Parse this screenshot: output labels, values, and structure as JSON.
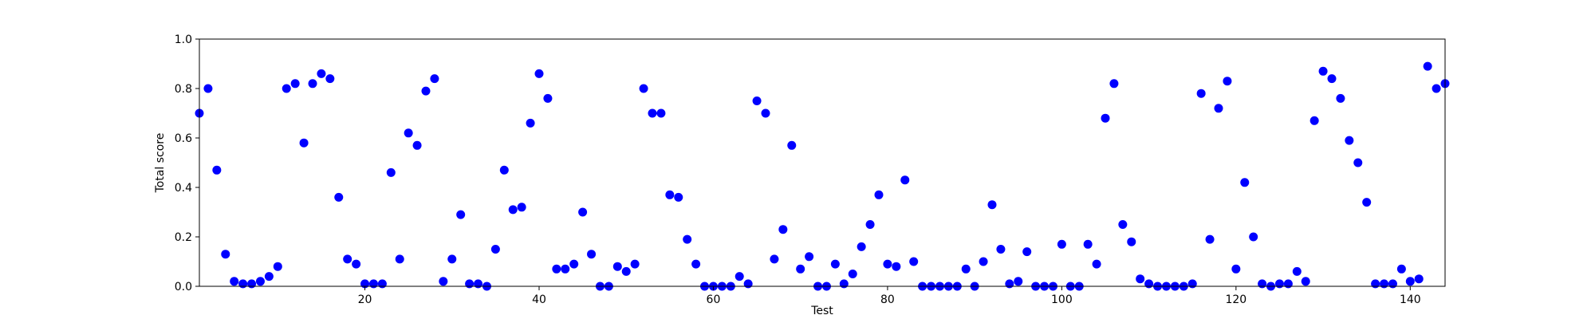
{
  "chart_data": {
    "type": "scatter",
    "title": "",
    "xlabel": "Test",
    "ylabel": "Total score",
    "xlim": [
      1,
      144
    ],
    "ylim": [
      0.0,
      1.0
    ],
    "xticks": [
      20,
      40,
      60,
      80,
      100,
      120,
      140
    ],
    "yticks": [
      0.0,
      0.2,
      0.4,
      0.6,
      0.8,
      1.0
    ],
    "xtick_labels": [
      "20",
      "40",
      "60",
      "80",
      "100",
      "120",
      "140"
    ],
    "ytick_labels": [
      "0.0",
      "0.2",
      "0.4",
      "0.6",
      "0.8",
      "1.0"
    ],
    "grid": false,
    "marker_color": "#0000ff",
    "x": [
      1,
      2,
      3,
      4,
      5,
      6,
      7,
      8,
      9,
      10,
      11,
      12,
      13,
      14,
      15,
      16,
      17,
      18,
      19,
      20,
      21,
      22,
      23,
      24,
      25,
      26,
      27,
      28,
      29,
      30,
      31,
      32,
      33,
      34,
      35,
      36,
      37,
      38,
      39,
      40,
      41,
      42,
      43,
      44,
      45,
      46,
      47,
      48,
      49,
      50,
      51,
      52,
      53,
      54,
      55,
      56,
      57,
      58,
      59,
      60,
      61,
      62,
      63,
      64,
      65,
      66,
      67,
      68,
      69,
      70,
      71,
      72,
      73,
      74,
      75,
      76,
      77,
      78,
      79,
      80,
      81,
      82,
      83,
      84,
      85,
      86,
      87,
      88,
      89,
      90,
      91,
      92,
      93,
      94,
      95,
      96,
      97,
      98,
      99,
      100,
      101,
      102,
      103,
      104,
      105,
      106,
      107,
      108,
      109,
      110,
      111,
      112,
      113,
      114,
      115,
      116,
      117,
      118,
      119,
      120,
      121,
      122,
      123,
      124,
      125,
      126,
      127,
      128,
      129,
      130,
      131,
      132,
      133,
      134,
      135,
      136,
      137,
      138,
      139,
      140,
      141,
      142,
      143,
      144
    ],
    "y": [
      0.7,
      0.8,
      0.47,
      0.13,
      0.02,
      0.01,
      0.01,
      0.02,
      0.04,
      0.08,
      0.8,
      0.82,
      0.58,
      0.82,
      0.86,
      0.84,
      0.36,
      0.11,
      0.09,
      0.01,
      0.01,
      0.01,
      0.46,
      0.11,
      0.62,
      0.57,
      0.79,
      0.84,
      0.02,
      0.11,
      0.29,
      0.01,
      0.01,
      0.0,
      0.15,
      0.47,
      0.31,
      0.32,
      0.66,
      0.86,
      0.76,
      0.07,
      0.07,
      0.09,
      0.3,
      0.13,
      0.0,
      0.0,
      0.08,
      0.06,
      0.09,
      0.8,
      0.7,
      0.7,
      0.37,
      0.36,
      0.19,
      0.09,
      0.0,
      0.0,
      0.0,
      0.0,
      0.04,
      0.01,
      0.75,
      0.7,
      0.11,
      0.23,
      0.57,
      0.07,
      0.12,
      0.0,
      0.0,
      0.09,
      0.01,
      0.05,
      0.16,
      0.25,
      0.37,
      0.09,
      0.08,
      0.43,
      0.1,
      0.0,
      0.0,
      0.0,
      0.0,
      0.0,
      0.07,
      0.0,
      0.1,
      0.33,
      0.15,
      0.01,
      0.02,
      0.14,
      0.0,
      0.0,
      0.0,
      0.17,
      0.0,
      0.0,
      0.17,
      0.09,
      0.68,
      0.82,
      0.25,
      0.18,
      0.03,
      0.01,
      0.0,
      0.0,
      0.0,
      0.0,
      0.01,
      0.78,
      0.19,
      0.72,
      0.83,
      0.07,
      0.42,
      0.2,
      0.01,
      0.0,
      0.01,
      0.01,
      0.06,
      0.02,
      0.67,
      0.87,
      0.84,
      0.76,
      0.59,
      0.5,
      0.34,
      0.01,
      0.01,
      0.01,
      0.07,
      0.02,
      0.03,
      0.89,
      0.8,
      0.82
    ]
  }
}
